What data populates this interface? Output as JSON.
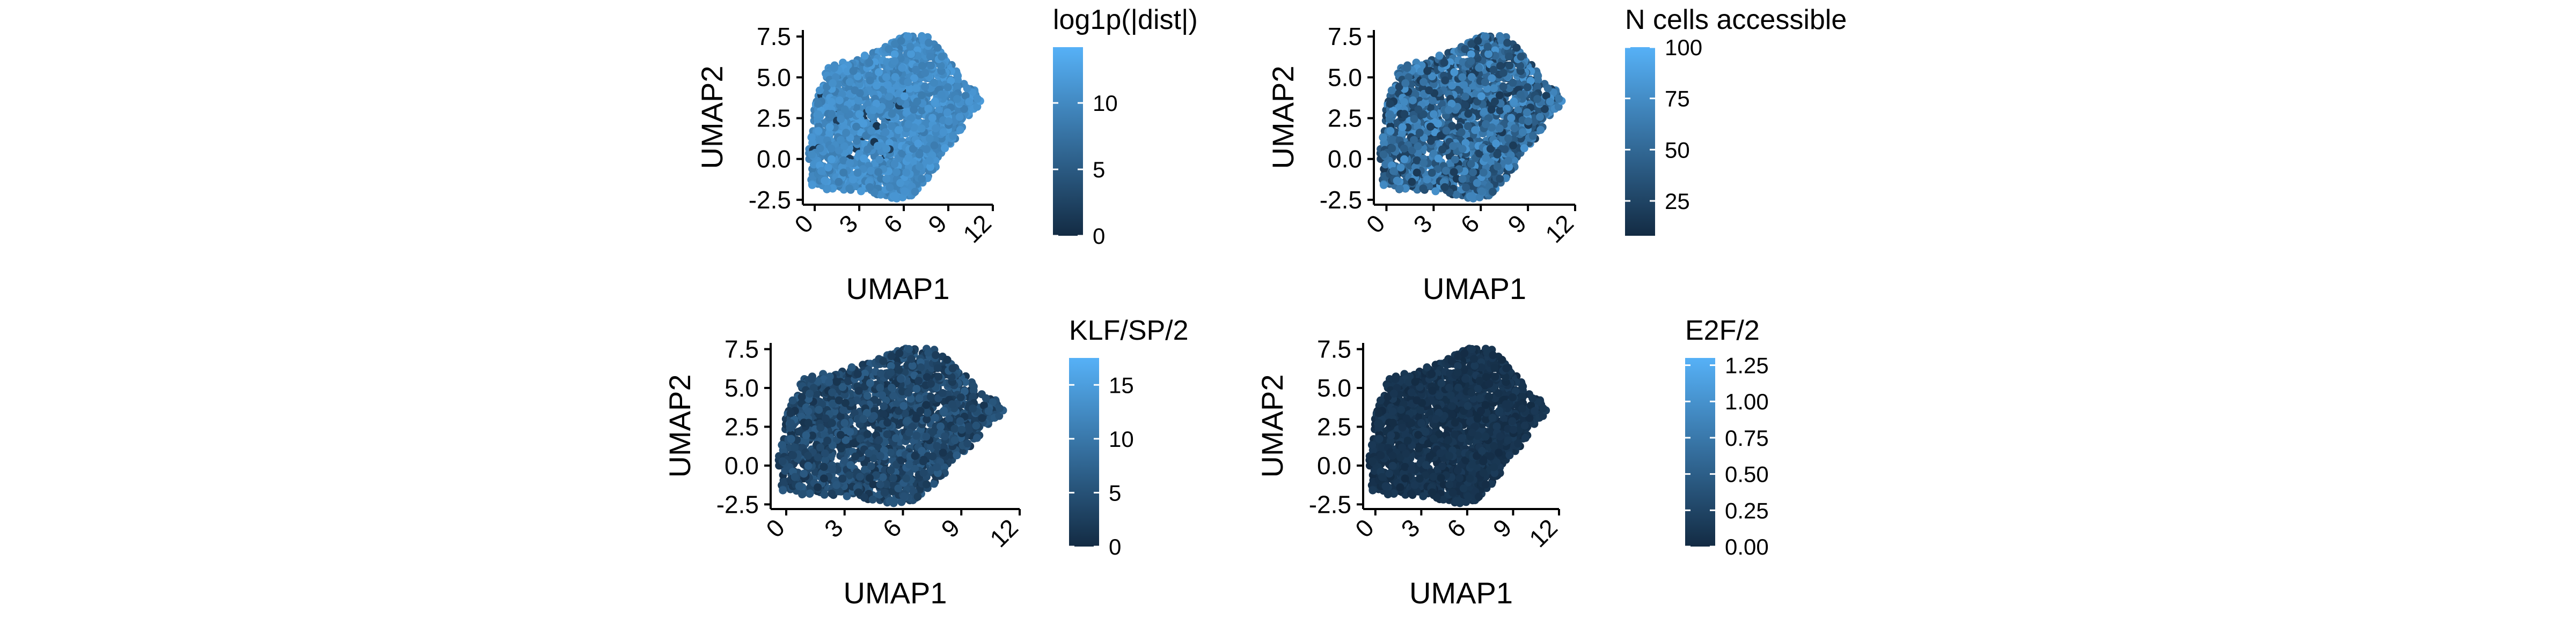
{
  "chart_data": [
    {
      "type": "scatter",
      "title": "",
      "xlabel": "UMAP1",
      "ylabel": "UMAP2",
      "xlim": [
        -0.8,
        12
      ],
      "ylim": [
        -2.8,
        7.9
      ],
      "xticks": [
        "0",
        "3",
        "6",
        "9",
        "12"
      ],
      "yticks": [
        "-2.5",
        "0.0",
        "2.5",
        "5.0",
        "7.5"
      ],
      "color_scale": {
        "title": "log1p(|dist|)",
        "min": 0,
        "max": 14.2,
        "ticks": [
          "0",
          "5",
          "10"
        ],
        "low": "#132b43",
        "high": "#56b1f7"
      },
      "coloring": {
        "baseline": 0.72,
        "noise": 0.12,
        "dark_fraction": 0.02
      },
      "series": []
    },
    {
      "type": "scatter",
      "title": "",
      "xlabel": "UMAP1",
      "ylabel": "UMAP2",
      "xlim": [
        -0.8,
        12
      ],
      "ylim": [
        -2.8,
        7.9
      ],
      "xticks": [
        "0",
        "3",
        "6",
        "9",
        "12"
      ],
      "yticks": [
        "-2.5",
        "0.0",
        "2.5",
        "5.0",
        "7.5"
      ],
      "color_scale": {
        "title": "N cells accessible",
        "min": 8,
        "max": 100,
        "ticks": [
          "25",
          "50",
          "75",
          "100"
        ],
        "low": "#132b43",
        "high": "#56b1f7"
      },
      "coloring": {
        "baseline": 0.45,
        "noise": 0.35,
        "dark_fraction": 0
      },
      "series": []
    },
    {
      "type": "scatter",
      "title": "",
      "xlabel": "UMAP1",
      "ylabel": "UMAP2",
      "xlim": [
        -0.8,
        12
      ],
      "ylim": [
        -2.8,
        7.9
      ],
      "xticks": [
        "0",
        "3",
        "6",
        "9",
        "12"
      ],
      "yticks": [
        "-2.5",
        "0.0",
        "2.5",
        "5.0",
        "7.5"
      ],
      "color_scale": {
        "title": "KLF/SP/2",
        "min": 0,
        "max": 17.5,
        "ticks": [
          "0",
          "5",
          "10",
          "15"
        ],
        "low": "#132b43",
        "high": "#56b1f7"
      },
      "coloring": {
        "baseline": 0.22,
        "noise": 0.16,
        "dark_fraction": 0
      },
      "series": []
    },
    {
      "type": "scatter",
      "title": "",
      "xlabel": "UMAP1",
      "ylabel": "UMAP2",
      "xlim": [
        -0.8,
        12
      ],
      "ylim": [
        -2.8,
        7.9
      ],
      "xticks": [
        "0",
        "3",
        "6",
        "9",
        "12"
      ],
      "yticks": [
        "-2.5",
        "0.0",
        "2.5",
        "5.0",
        "7.5"
      ],
      "color_scale": {
        "title": "E2F/2",
        "min": 0,
        "max": 1.3,
        "ticks": [
          "0.00",
          "0.25",
          "0.50",
          "0.75",
          "1.00",
          "1.25"
        ],
        "low": "#132b43",
        "high": "#56b1f7"
      },
      "coloring": {
        "baseline": 0.06,
        "noise": 0.06,
        "dark_fraction": 0
      },
      "series": []
    }
  ]
}
